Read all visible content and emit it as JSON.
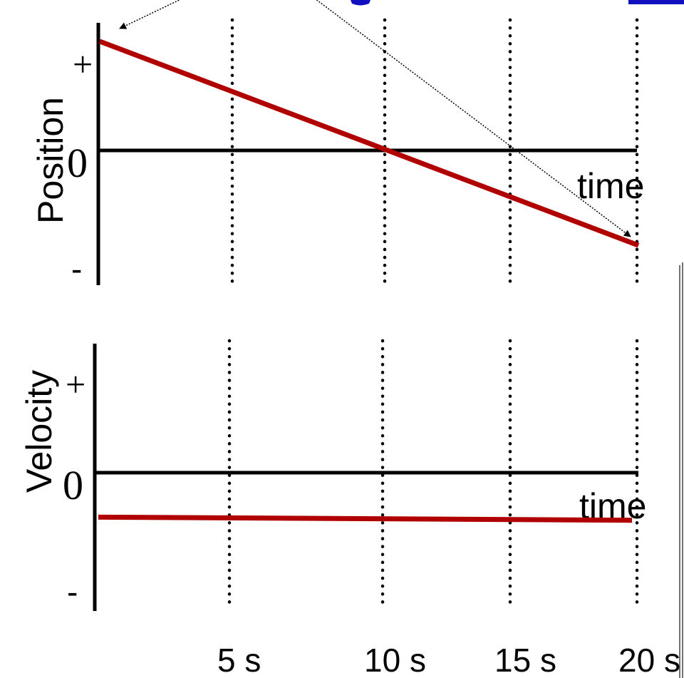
{
  "chart_data": [
    {
      "type": "line",
      "ylabel": "Position",
      "xlabel": "time",
      "y_tick_labels": [
        "+",
        "0",
        "-"
      ],
      "x": [
        0,
        20
      ],
      "series": [
        {
          "values": [
            1,
            -0.87
          ],
          "color": "#b00000"
        }
      ],
      "xlim": [
        0,
        20
      ],
      "ylim": [
        -1,
        1
      ],
      "guides_x": [
        5,
        10,
        15,
        20
      ],
      "grid": false
    },
    {
      "type": "line",
      "ylabel": "Velocity",
      "xlabel": "time",
      "y_tick_labels": [
        "+",
        "0",
        "-"
      ],
      "x": [
        0,
        20
      ],
      "series": [
        {
          "values": [
            -0.43,
            -0.46
          ],
          "color": "#b00000"
        }
      ],
      "xlim": [
        0,
        20
      ],
      "ylim": [
        -1,
        1
      ],
      "guides_x": [
        5,
        10,
        15,
        20
      ],
      "grid": false
    }
  ],
  "x_tick_labels": [
    "5 s",
    "10 s",
    "15 s",
    "20 s"
  ]
}
